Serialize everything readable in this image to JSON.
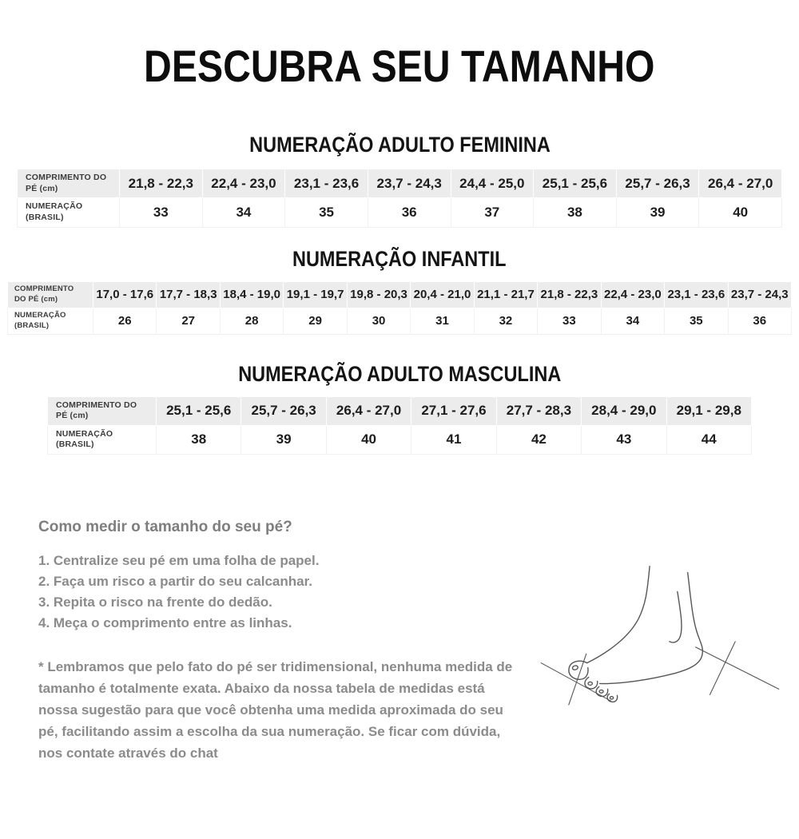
{
  "page": {
    "title": "DESCUBRA SEU TAMANHO"
  },
  "tables": [
    {
      "heading": "NUMERAÇÃO ADULTO FEMININA",
      "row_labels": [
        "COMPRIMENTO DO PÉ (cm)",
        "NUMERAÇÃO (BRASIL)"
      ],
      "ranges": [
        "21,8 - 22,3",
        "22,4 - 23,0",
        "23,1 - 23,6",
        "23,7 - 24,3",
        "24,4 - 25,0",
        "25,1 - 25,6",
        "25,7 - 26,3",
        "26,4 - 27,0"
      ],
      "sizes": [
        "33",
        "34",
        "35",
        "36",
        "37",
        "38",
        "39",
        "40"
      ]
    },
    {
      "heading": "NUMERAÇÃO INFANTIL",
      "row_labels": [
        "COMPRIMENTO DO PÉ (cm)",
        "NUMERAÇÃO (BRASIL)"
      ],
      "ranges": [
        "17,0 - 17,6",
        "17,7 - 18,3",
        "18,4 - 19,0",
        "19,1 - 19,7",
        "19,8 - 20,3",
        "20,4 - 21,0",
        "21,1 - 21,7",
        "21,8 - 22,3",
        "22,4 - 23,0",
        "23,1 - 23,6",
        "23,7 - 24,3"
      ],
      "sizes": [
        "26",
        "27",
        "28",
        "29",
        "30",
        "31",
        "32",
        "33",
        "34",
        "35",
        "36"
      ]
    },
    {
      "heading": "NUMERAÇÃO ADULTO MASCULINA",
      "row_labels": [
        "COMPRIMENTO DO PÉ (cm)",
        "NUMERAÇÃO (BRASIL)"
      ],
      "ranges": [
        "25,1 - 25,6",
        "25,7 - 26,3",
        "26,4 - 27,0",
        "27,1 - 27,6",
        "27,7 - 28,3",
        "28,4 - 29,0",
        "29,1 - 29,8"
      ],
      "sizes": [
        "38",
        "39",
        "40",
        "41",
        "42",
        "43",
        "44"
      ]
    }
  ],
  "howto": {
    "heading": "Como medir o tamanho do seu pé?",
    "steps": [
      "1. Centralize seu pé em uma folha de papel.",
      "2. Faça um risco a partir do seu calcanhar.",
      "3. Repita o risco na frente do dedão.",
      "4. Meça o comprimento entre as linhas."
    ],
    "note": "* Lembramos que pelo fato do pé ser tridimensional, nenhuma medida de tamanho é totalmente exata. Abaixo da nossa tabela de medidas está nossa sugestão para que você obtenha uma medida aproximada do seu pé, facilitando assim a escolha da sua numeração. Se ficar com dúvida, nos contate através do chat"
  },
  "icons": {
    "foot_illustration": "foot-measure-line-drawing"
  },
  "colors": {
    "table_header_bg": "#ececec",
    "table_text": "#1d1d1d",
    "gray_text": "#8b8b8b",
    "heading_text": "#0d0d0d",
    "illustration_stroke": "#555555"
  }
}
